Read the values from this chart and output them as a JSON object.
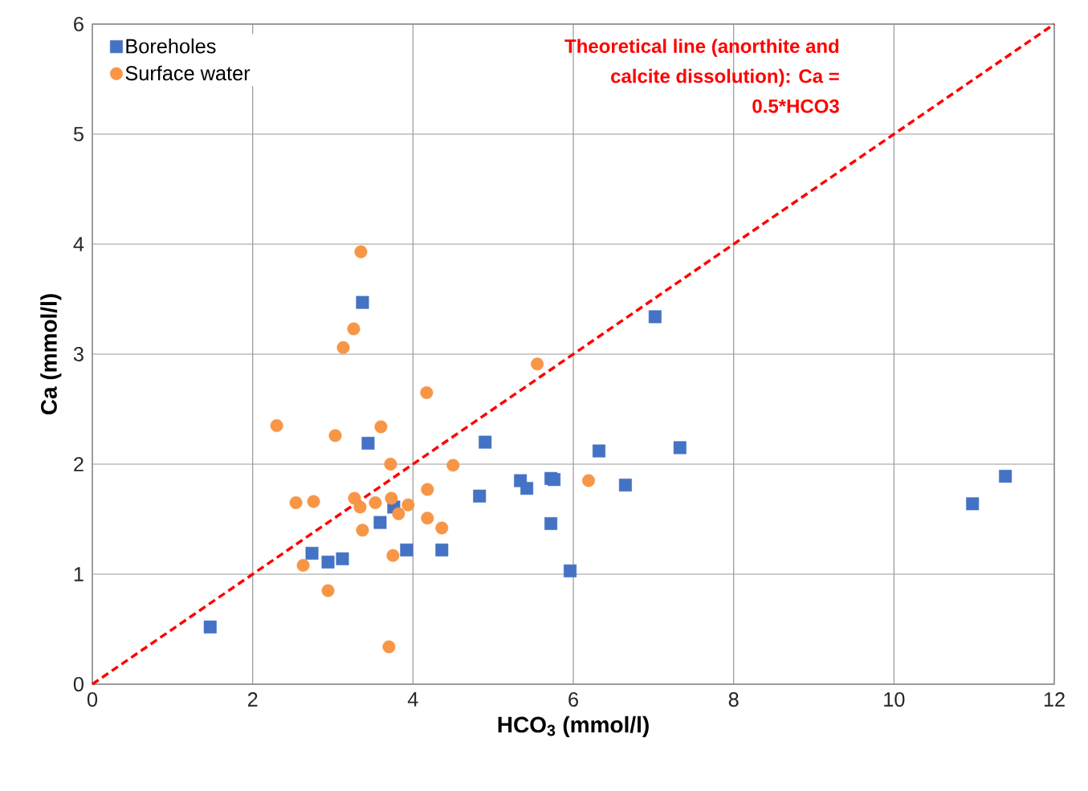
{
  "chart_data": {
    "type": "scatter",
    "xlabel": "HCO$_{3}$ (mmol/l)",
    "ylabel": "Ca (mmol/l)",
    "xlim": [
      0,
      12
    ],
    "ylim": [
      0,
      6
    ],
    "xticks": [
      0,
      2,
      4,
      6,
      8,
      10,
      12
    ],
    "yticks": [
      0,
      1,
      2,
      3,
      4,
      5,
      6
    ],
    "grid": true,
    "legend": "top left",
    "annotations": [
      "Theoretical line (anorthite and calcite dissolution): Ca = 0.5*HCO3"
    ],
    "series": [
      {
        "name": "Boreholes",
        "marker": "square",
        "color": "#4472c4",
        "x": [
          1.47,
          3.37,
          3.44,
          3.76,
          3.59,
          2.74,
          2.94,
          3.12,
          3.92,
          4.36,
          4.83,
          4.9,
          5.34,
          5.42,
          5.72,
          5.76,
          5.72,
          5.96,
          6.32,
          6.65,
          7.02,
          7.33,
          10.98,
          11.39
        ],
        "values": [
          0.52,
          3.47,
          2.19,
          1.61,
          1.47,
          1.19,
          1.11,
          1.14,
          1.22,
          1.22,
          1.71,
          2.2,
          1.85,
          1.78,
          1.87,
          1.86,
          1.46,
          1.03,
          2.12,
          1.81,
          3.34,
          2.15,
          1.64,
          1.89
        ]
      },
      {
        "name": "Surface water",
        "marker": "circle",
        "color": "#f79646",
        "x": [
          3.35,
          3.26,
          3.13,
          5.55,
          4.17,
          2.3,
          3.6,
          3.03,
          3.72,
          4.5,
          4.18,
          2.54,
          2.76,
          3.27,
          3.34,
          3.53,
          3.73,
          3.94,
          3.82,
          4.18,
          4.36,
          3.37,
          3.75,
          2.63,
          2.94,
          3.7,
          6.19
        ],
        "values": [
          3.93,
          3.23,
          3.06,
          2.91,
          2.65,
          2.35,
          2.34,
          2.26,
          2.0,
          1.99,
          1.77,
          1.65,
          1.66,
          1.69,
          1.61,
          1.65,
          1.69,
          1.63,
          1.55,
          1.51,
          1.42,
          1.4,
          1.17,
          1.08,
          0.85,
          0.34,
          1.85
        ]
      },
      {
        "type": "line",
        "line_style": "dashed",
        "marker": "none",
        "color": "#ff0000",
        "x": [
          0,
          12
        ],
        "values": [
          0,
          6
        ]
      }
    ]
  }
}
